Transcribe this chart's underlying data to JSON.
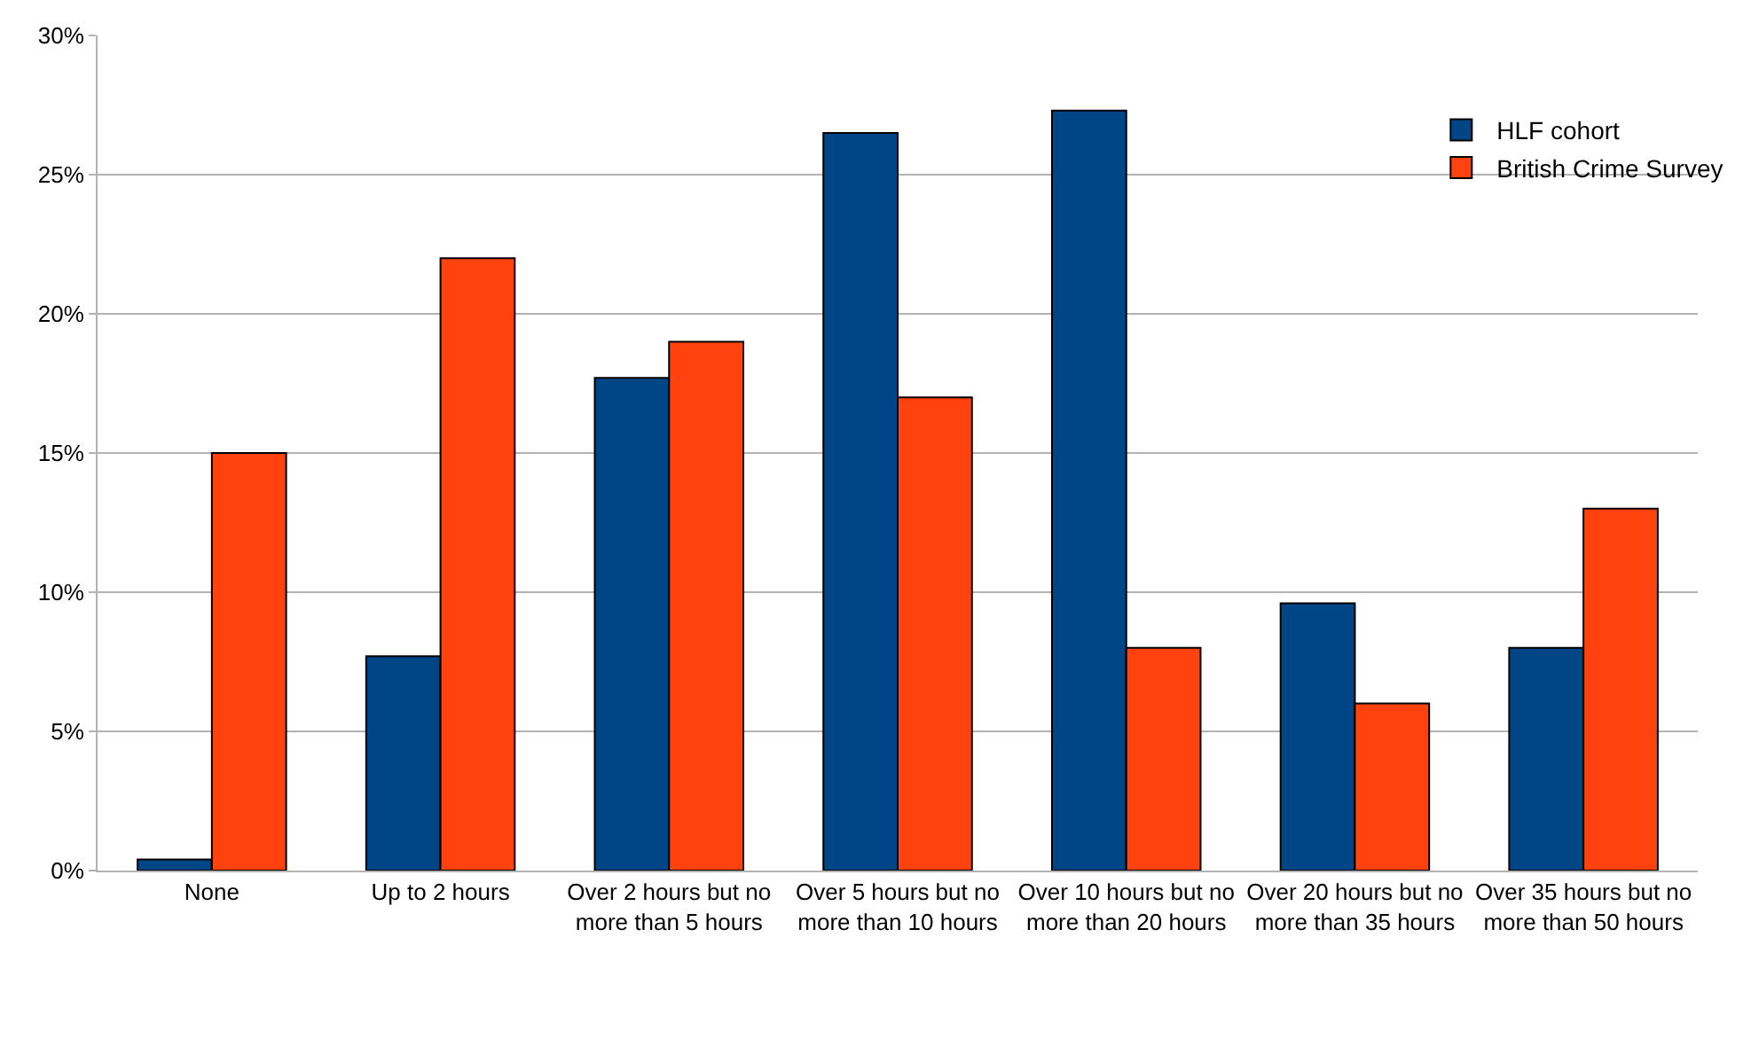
{
  "chart_data": {
    "type": "bar",
    "categories": [
      "None",
      "Up to 2 hours",
      "Over 2 hours but no more than 5 hours",
      "Over 5 hours but no more than 10 hours",
      "Over 10 hours but no more than 20 hours",
      "Over 20 hours but no more than 35 hours",
      "Over 35 hours but no more than 50 hours"
    ],
    "series": [
      {
        "name": "HLF cohort",
        "color": "#004586",
        "values": [
          0.4,
          7.7,
          17.7,
          26.5,
          27.3,
          9.6,
          8.0
        ]
      },
      {
        "name": "British Crime Survey",
        "color": "#ff420e",
        "values": [
          15,
          22,
          19,
          17,
          8,
          6,
          13
        ]
      }
    ],
    "ylim": [
      0,
      30
    ],
    "yticks": [
      {
        "value": 0,
        "label": "0%"
      },
      {
        "value": 5,
        "label": "5%"
      },
      {
        "value": 10,
        "label": "10%"
      },
      {
        "value": 15,
        "label": "15%"
      },
      {
        "value": 20,
        "label": "20%"
      },
      {
        "value": 25,
        "label": "25%"
      },
      {
        "value": 30,
        "label": "30%"
      }
    ],
    "grid": "y",
    "legend": "top right"
  }
}
